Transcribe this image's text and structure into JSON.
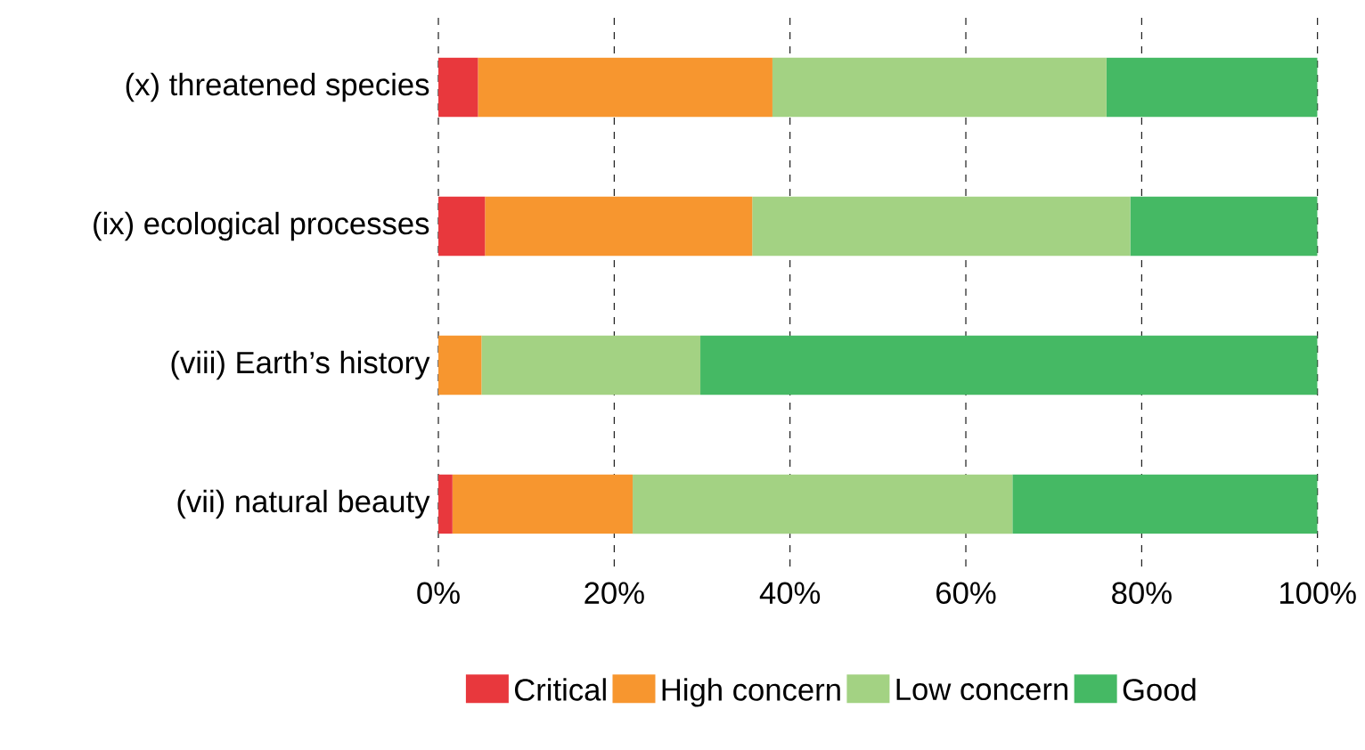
{
  "chart_data": {
    "type": "bar",
    "orientation": "horizontal",
    "stacked": true,
    "categories": [
      "(x) threatened species",
      "(ix) ecological processes",
      "(viii) Earth’s history",
      "(vii) natural beauty"
    ],
    "series": [
      {
        "name": "Critical",
        "color": "#e8383d",
        "values": [
          4.5,
          5.3,
          0,
          1.6
        ]
      },
      {
        "name": "High concern",
        "color": "#f7962f",
        "values": [
          33.5,
          30.4,
          4.9,
          20.5
        ]
      },
      {
        "name": "Low concern",
        "color": "#a3d283",
        "values": [
          38,
          43,
          24.9,
          43.2
        ]
      },
      {
        "name": "Good",
        "color": "#45b964",
        "values": [
          24,
          21.3,
          70.2,
          34.7
        ]
      }
    ],
    "xlim": [
      0,
      100
    ],
    "xticks": [
      {
        "value": 0,
        "label": "0%"
      },
      {
        "value": 20,
        "label": "20%"
      },
      {
        "value": 40,
        "label": "40%"
      },
      {
        "value": 60,
        "label": "60%"
      },
      {
        "value": 80,
        "label": "80%"
      },
      {
        "value": 100,
        "label": "100%"
      }
    ],
    "grid": "x",
    "legend": "bottom"
  }
}
